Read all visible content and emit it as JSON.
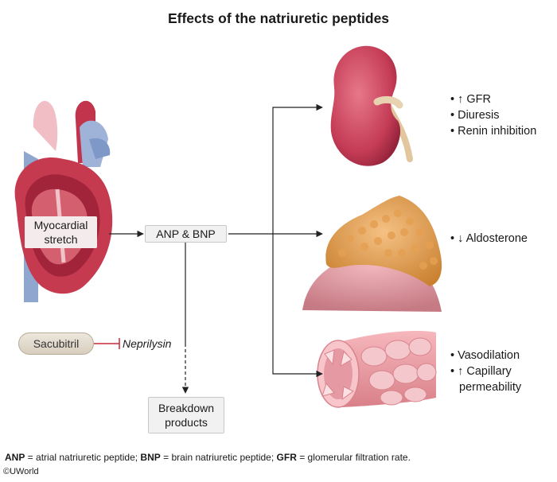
{
  "title": "Effects of the natriuretic peptides",
  "heart": {
    "label_line1": "Myocardial",
    "label_line2": "stretch"
  },
  "peptides": {
    "label": "ANP & BNP"
  },
  "drug": {
    "label": "Sacubitril"
  },
  "enzyme": {
    "label": "Neprilysin"
  },
  "breakdown": {
    "line1": "Breakdown",
    "line2": "products"
  },
  "kidney_effects": [
    "• ↑ GFR",
    "• Diuresis",
    "• Renin inhibition"
  ],
  "adrenal_effects": [
    "• ↓ Aldosterone"
  ],
  "vessel_effects": [
    "• Vasodilation",
    "• ↑ Capillary",
    "permeability"
  ],
  "footnote": {
    "anp_abbr": "ANP",
    "anp_def": " = atrial natriuretic peptide; ",
    "bnp_abbr": "BNP",
    "bnp_def": " = brain natriuretic peptide; ",
    "gfr_abbr": "GFR",
    "gfr_def": " = glomerular filtration rate."
  },
  "copyright": "©UWorld",
  "colors": {
    "accent_red": "#c8283a",
    "arrow": "#222222",
    "box_bg": "#f1f1f1"
  }
}
